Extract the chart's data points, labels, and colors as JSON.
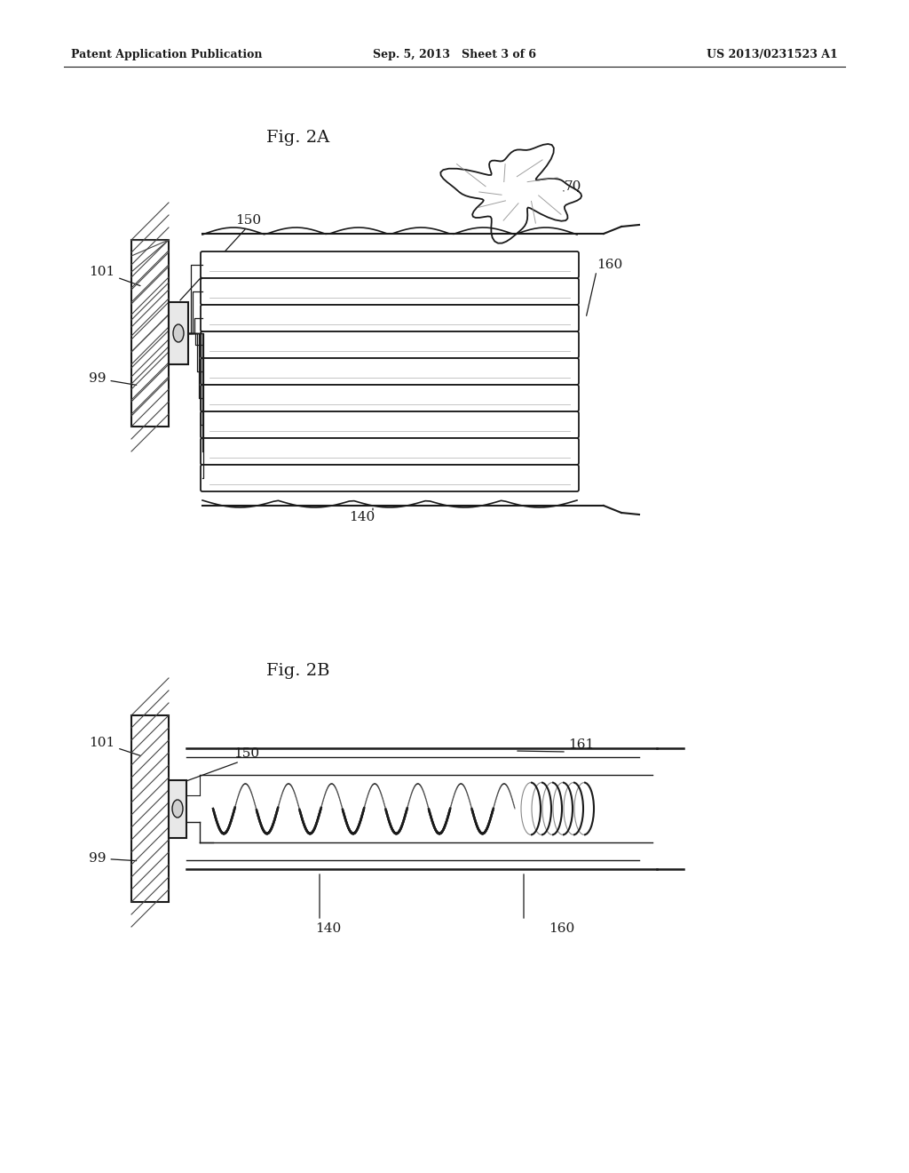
{
  "bg_color": "#ffffff",
  "header_left": "Patent Application Publication",
  "header_mid": "Sep. 5, 2013   Sheet 3 of 6",
  "header_right": "US 2013/0231523 A1",
  "fig2a_title": "Fig. 2A",
  "fig2b_title": "Fig. 2B",
  "color_main": "#1a1a1a",
  "color_hatch": "#444444",
  "color_gray": "#888888",
  "color_lgray": "#bbbbbb"
}
